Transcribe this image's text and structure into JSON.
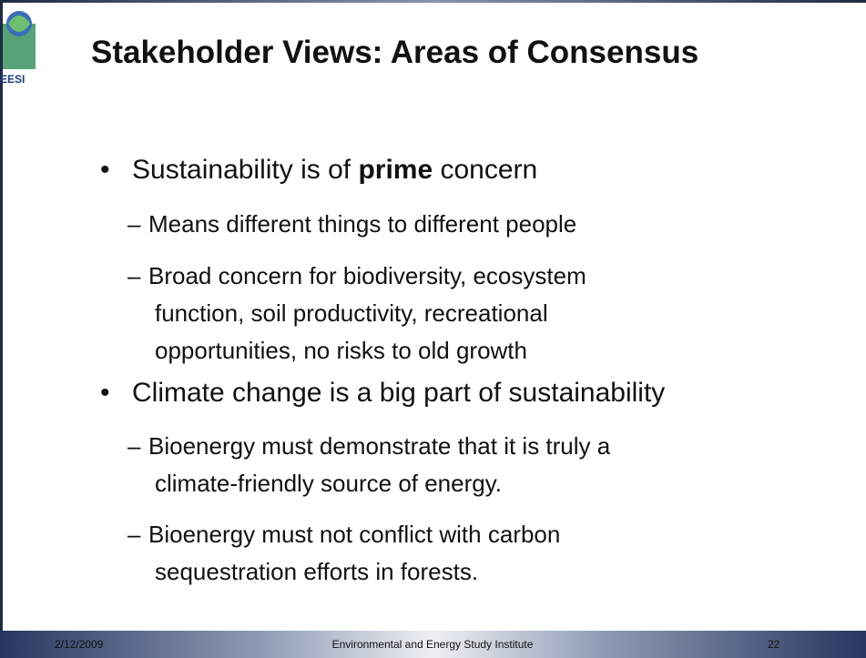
{
  "header": {
    "logo_text": "EESI",
    "title": "Stakeholder Views: Areas of Consensus"
  },
  "bullets": [
    {
      "parts": [
        "Sustainability is of ",
        "prime",
        " concern"
      ],
      "sub": [
        [
          "Means different things to different people"
        ],
        [
          "Broad concern for biodiversity, ecosystem",
          "function, soil productivity, recreational",
          "opportunities, no risks to old growth"
        ]
      ]
    },
    {
      "parts": [
        "Climate change is a big part of sustainability"
      ],
      "sub": [
        [
          "Bioenergy must demonstrate that it is truly a",
          "climate-friendly source of energy."
        ],
        [
          "Bioenergy must not conflict with carbon",
          "sequestration efforts in forests."
        ]
      ]
    }
  ],
  "footer": {
    "date": "2/12/2009",
    "organization": "Environmental and Energy Study Institute",
    "page": "22"
  }
}
